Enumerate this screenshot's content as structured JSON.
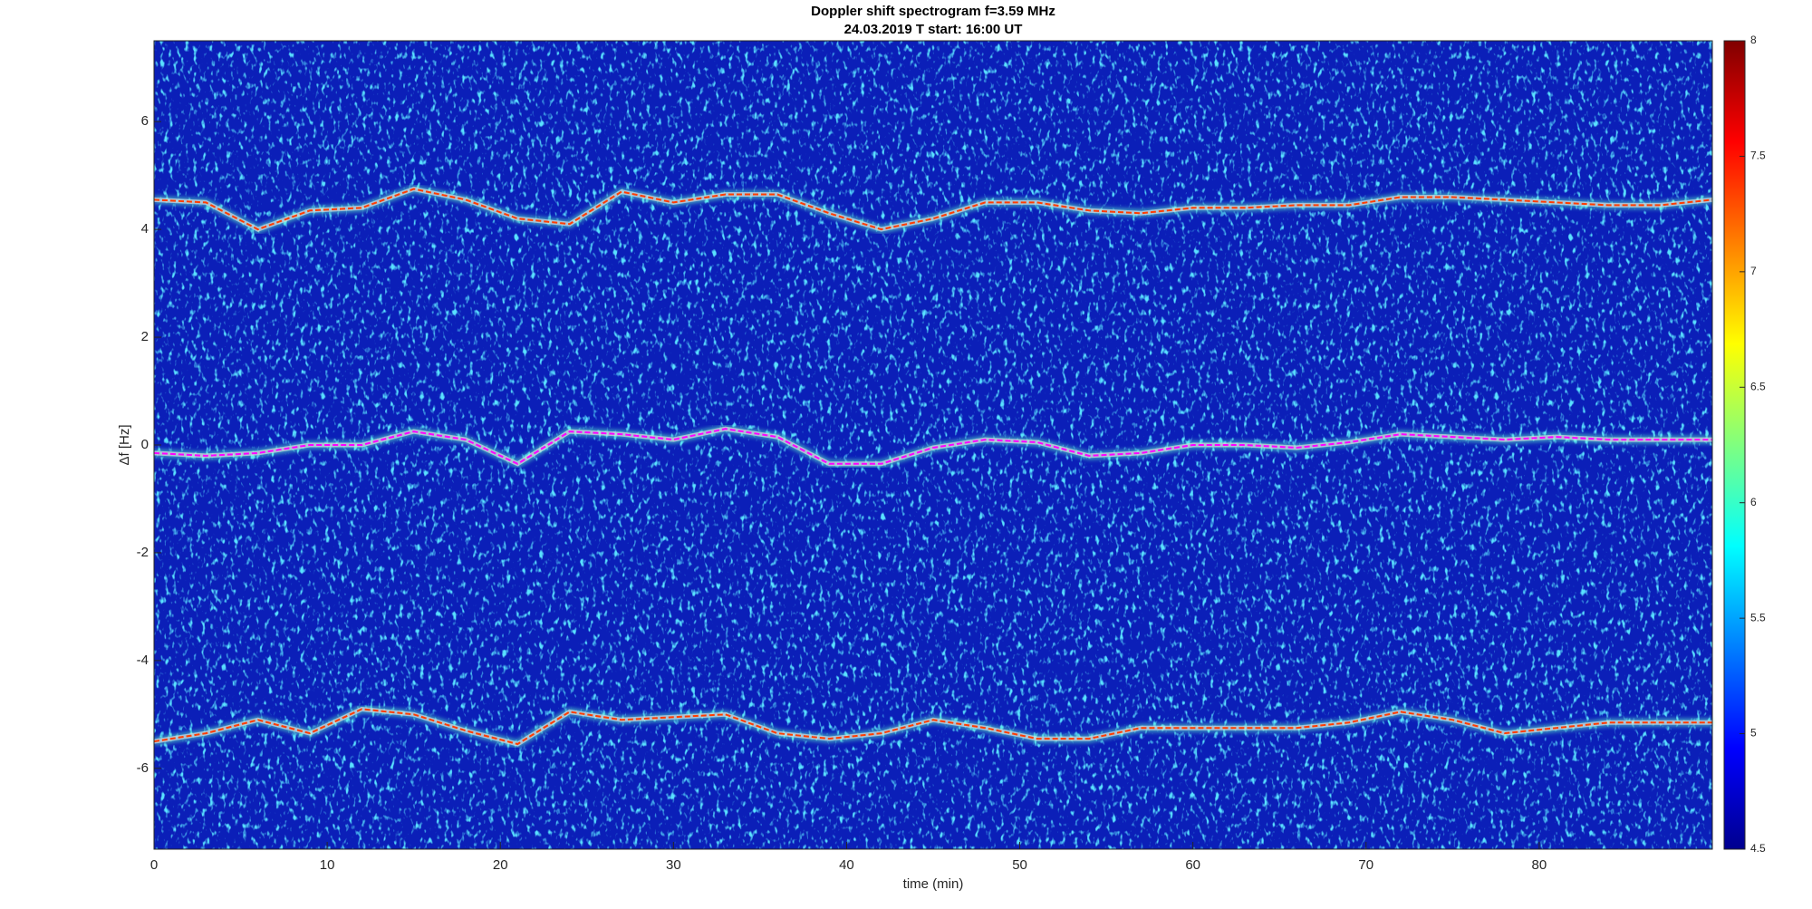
{
  "chart_data": {
    "type": "spectrogram",
    "title": "Doppler shift spectrogram f=3.59 MHz",
    "subtitle": "24.03.2019    T start: 16:00 UT",
    "x_label": "time (min)",
    "y_label": "Δf [Hz]",
    "xlim": [
      0,
      90
    ],
    "xticks": [
      0,
      10,
      20,
      30,
      40,
      50,
      60,
      70,
      80
    ],
    "ylim": [
      -7.5,
      7.5
    ],
    "yticks": [
      -6,
      -4,
      -2,
      0,
      2,
      4,
      6
    ],
    "x": [
      0,
      3,
      6,
      9,
      12,
      15,
      18,
      21,
      24,
      27,
      30,
      33,
      36,
      39,
      42,
      45,
      48,
      51,
      54,
      57,
      60,
      63,
      66,
      69,
      72,
      75,
      78,
      81,
      84,
      87,
      90
    ],
    "series": [
      {
        "color": "#ff3c00",
        "values": [
          4.55,
          4.5,
          4.0,
          4.35,
          4.4,
          4.75,
          4.55,
          4.2,
          4.1,
          4.7,
          4.5,
          4.65,
          4.65,
          4.3,
          4.0,
          4.2,
          4.5,
          4.5,
          4.35,
          4.3,
          4.4,
          4.4,
          4.45,
          4.45,
          4.6,
          4.6,
          4.55,
          4.5,
          4.45,
          4.45,
          4.55
        ]
      },
      {
        "color": "#ff00ff",
        "values": [
          -0.15,
          -0.2,
          -0.15,
          0,
          0,
          0.25,
          0.1,
          -0.35,
          0.25,
          0.2,
          0.1,
          0.3,
          0.15,
          -0.35,
          -0.35,
          -0.05,
          0.1,
          0.05,
          -0.2,
          -0.15,
          0,
          0,
          -0.05,
          0.05,
          0.2,
          0.15,
          0.1,
          0.15,
          0.1,
          0.1,
          0.1
        ]
      },
      {
        "color": "#ff3c00",
        "values": [
          -5.5,
          -5.35,
          -5.1,
          -5.35,
          -4.9,
          -5.0,
          -5.3,
          -5.55,
          -4.95,
          -5.1,
          -5.05,
          -5.0,
          -5.35,
          -5.45,
          -5.35,
          -5.1,
          -5.25,
          -5.45,
          -5.45,
          -5.25,
          -5.25,
          -5.25,
          -5.25,
          -5.15,
          -4.95,
          -5.1,
          -5.35,
          -5.25,
          -5.15,
          -5.15,
          -5.15
        ]
      }
    ],
    "colorbar": {
      "colormap": "jet",
      "lim": [
        4.5,
        8
      ],
      "ticks": [
        4.5,
        5,
        5.5,
        6,
        6.5,
        7,
        7.5,
        8
      ]
    }
  }
}
